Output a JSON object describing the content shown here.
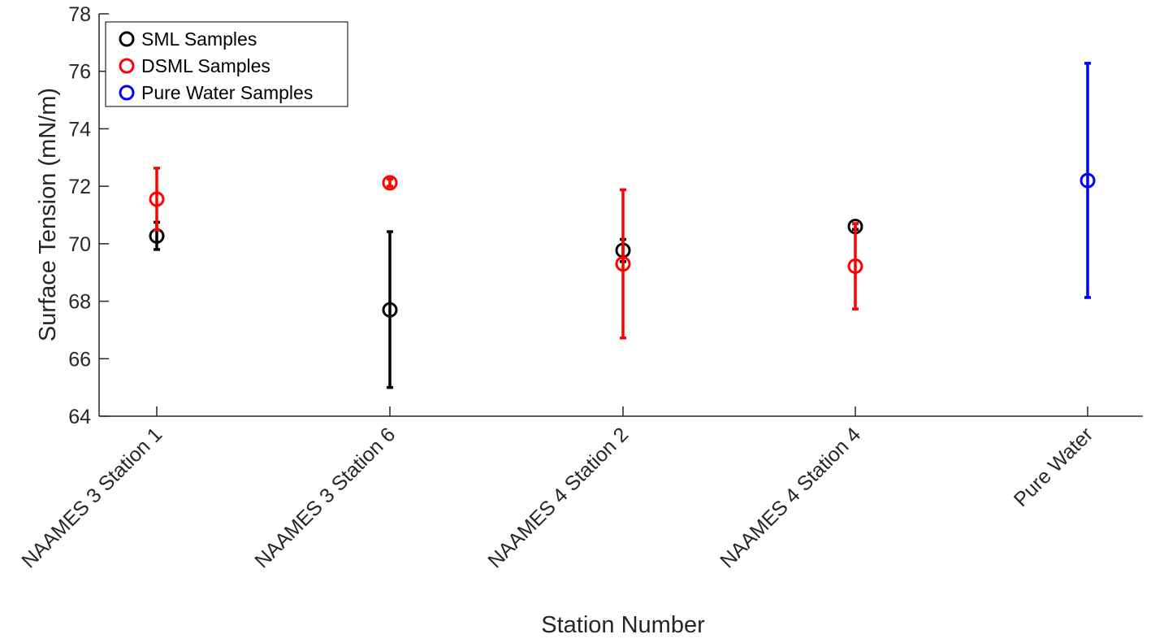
{
  "chart_data": {
    "type": "scatter",
    "xlabel": "Station Number",
    "ylabel": "Surface Tension (mN/m)",
    "ylim": [
      64,
      78
    ],
    "yticks": [
      64,
      66,
      68,
      70,
      72,
      74,
      76,
      78
    ],
    "categories": [
      "NAAMES 3 Station 1",
      "NAAMES 3 Station 6",
      "NAAMES 4 Station 2",
      "NAAMES 4 Station 4",
      "Pure Water"
    ],
    "grid": false,
    "error_bars": true,
    "legend": {
      "placement": "top-left"
    },
    "series": [
      {
        "name": "SML Samples",
        "color": "#000000",
        "marker": "open-circle",
        "points": [
          {
            "category": "NAAMES 3 Station 1",
            "y": 70.27,
            "lower": 69.8,
            "upper": 70.75
          },
          {
            "category": "NAAMES 3 Station 6",
            "y": 67.7,
            "lower": 65.0,
            "upper": 70.42
          },
          {
            "category": "NAAMES 4 Station 2",
            "y": 69.77,
            "lower": 69.38,
            "upper": 70.15
          },
          {
            "category": "NAAMES 4 Station 4",
            "y": 70.6,
            "lower": 70.5,
            "upper": 70.7
          }
        ]
      },
      {
        "name": "DSML Samples",
        "color": "#ff0000",
        "marker": "open-circle",
        "points": [
          {
            "category": "NAAMES 3 Station 1",
            "y": 71.55,
            "lower": 70.48,
            "upper": 72.63
          },
          {
            "category": "NAAMES 3 Station 6",
            "y": 72.12,
            "lower": 72.0,
            "upper": 72.25
          },
          {
            "category": "NAAMES 4 Station 2",
            "y": 69.3,
            "lower": 66.72,
            "upper": 71.88
          },
          {
            "category": "NAAMES 4 Station 4",
            "y": 69.22,
            "lower": 67.73,
            "upper": 70.7
          }
        ]
      },
      {
        "name": "Pure Water Samples",
        "color": "#0000ff",
        "marker": "open-circle",
        "points": [
          {
            "category": "Pure Water",
            "y": 72.2,
            "lower": 68.13,
            "upper": 76.28
          }
        ]
      }
    ]
  }
}
